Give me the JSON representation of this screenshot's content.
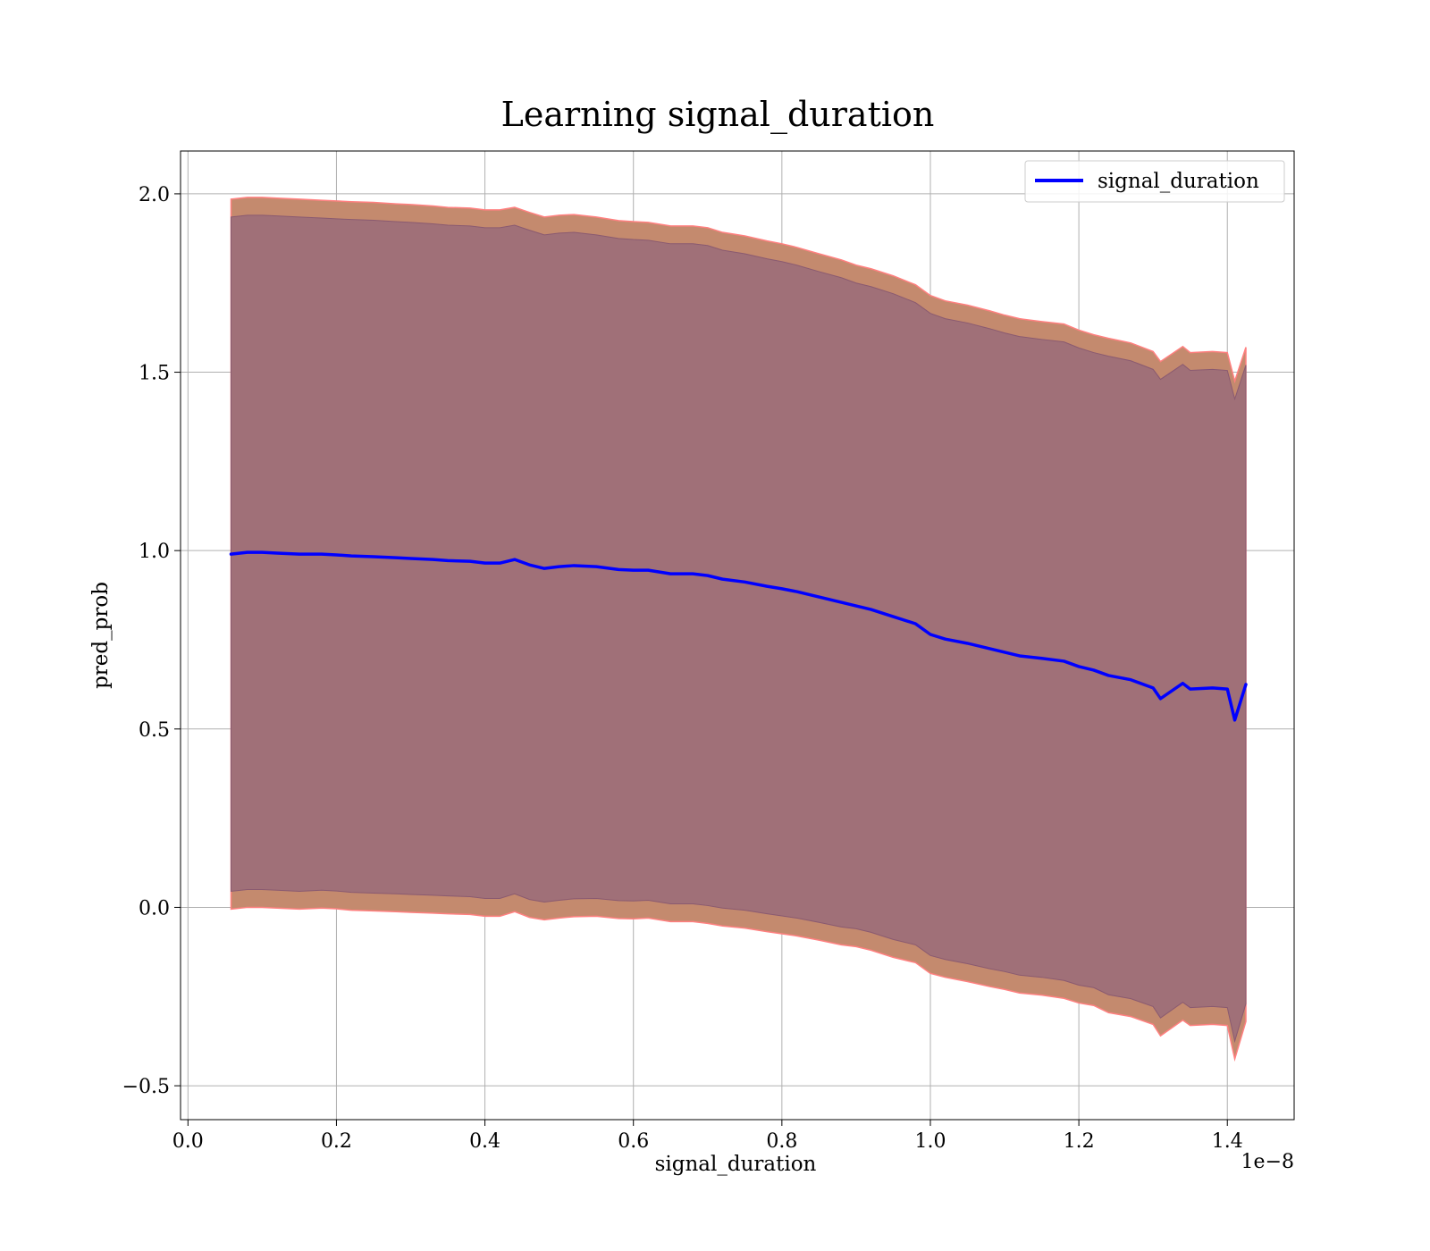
{
  "chart_data": {
    "type": "line",
    "title": "Learning signal_duration",
    "xlabel": "signal_duration",
    "ylabel": "pred_prob",
    "x_offset_text": "1e−8",
    "xlim": [
      -0.01,
      1.49
    ],
    "ylim": [
      -0.595,
      2.12
    ],
    "x_ticks": [
      0.0,
      0.2,
      0.4,
      0.6,
      0.8,
      1.0,
      1.2,
      1.4
    ],
    "x_tick_labels": [
      "0.0",
      "0.2",
      "0.4",
      "0.6",
      "0.8",
      "1.0",
      "1.2",
      "1.4"
    ],
    "y_ticks": [
      -0.5,
      0.0,
      0.5,
      1.0,
      1.5,
      2.0
    ],
    "y_tick_labels": [
      "−0.5",
      "0.0",
      "0.5",
      "1.0",
      "1.5",
      "2.0"
    ],
    "grid": true,
    "legend": {
      "position": "top-right",
      "entries": [
        "signal_duration"
      ]
    },
    "series": [
      {
        "name": "signal_duration",
        "color": "#0000ff",
        "x": [
          0.058,
          0.08,
          0.1,
          0.12,
          0.15,
          0.18,
          0.2,
          0.22,
          0.25,
          0.28,
          0.3,
          0.33,
          0.35,
          0.38,
          0.4,
          0.42,
          0.44,
          0.46,
          0.48,
          0.5,
          0.52,
          0.55,
          0.58,
          0.6,
          0.62,
          0.65,
          0.68,
          0.7,
          0.72,
          0.75,
          0.78,
          0.8,
          0.82,
          0.85,
          0.88,
          0.9,
          0.92,
          0.95,
          0.98,
          1.0,
          1.02,
          1.05,
          1.08,
          1.1,
          1.12,
          1.15,
          1.18,
          1.2,
          1.22,
          1.24,
          1.27,
          1.3,
          1.31,
          1.34,
          1.35,
          1.38,
          1.4,
          1.41,
          1.425
        ],
        "y": [
          0.99,
          0.995,
          0.995,
          0.993,
          0.99,
          0.99,
          0.988,
          0.985,
          0.983,
          0.98,
          0.978,
          0.975,
          0.972,
          0.97,
          0.965,
          0.965,
          0.975,
          0.96,
          0.95,
          0.955,
          0.958,
          0.955,
          0.947,
          0.945,
          0.945,
          0.935,
          0.935,
          0.93,
          0.92,
          0.912,
          0.9,
          0.893,
          0.885,
          0.87,
          0.855,
          0.845,
          0.835,
          0.815,
          0.795,
          0.765,
          0.752,
          0.74,
          0.725,
          0.715,
          0.705,
          0.698,
          0.69,
          0.675,
          0.665,
          0.65,
          0.638,
          0.615,
          0.585,
          0.628,
          0.612,
          0.615,
          0.612,
          0.525,
          0.625
        ],
        "band_outer": {
          "color": "#c48a6e",
          "edge_color": "#ff8080",
          "upper": [
            1.985,
            1.99,
            1.99,
            1.988,
            1.985,
            1.982,
            1.98,
            1.978,
            1.976,
            1.972,
            1.97,
            1.966,
            1.962,
            1.96,
            1.955,
            1.955,
            1.962,
            1.948,
            1.935,
            1.94,
            1.942,
            1.935,
            1.925,
            1.922,
            1.92,
            1.91,
            1.91,
            1.905,
            1.892,
            1.882,
            1.868,
            1.86,
            1.85,
            1.832,
            1.815,
            1.8,
            1.79,
            1.77,
            1.745,
            1.715,
            1.7,
            1.688,
            1.672,
            1.66,
            1.65,
            1.642,
            1.635,
            1.618,
            1.605,
            1.595,
            1.582,
            1.558,
            1.53,
            1.572,
            1.555,
            1.558,
            1.555,
            1.475,
            1.57
          ],
          "lower": [
            -0.005,
            0.0,
            0.0,
            -0.002,
            -0.005,
            -0.002,
            -0.004,
            -0.008,
            -0.01,
            -0.012,
            -0.014,
            -0.016,
            -0.018,
            -0.02,
            -0.025,
            -0.025,
            -0.012,
            -0.028,
            -0.035,
            -0.03,
            -0.026,
            -0.025,
            -0.031,
            -0.032,
            -0.03,
            -0.04,
            -0.04,
            -0.045,
            -0.052,
            -0.058,
            -0.068,
            -0.074,
            -0.08,
            -0.092,
            -0.105,
            -0.11,
            -0.12,
            -0.14,
            -0.155,
            -0.185,
            -0.196,
            -0.208,
            -0.222,
            -0.23,
            -0.24,
            -0.246,
            -0.255,
            -0.268,
            -0.275,
            -0.295,
            -0.306,
            -0.328,
            -0.36,
            -0.316,
            -0.331,
            -0.328,
            -0.331,
            -0.425,
            -0.32
          ]
        },
        "band_inner": {
          "color": "#a07078",
          "upper": [
            1.935,
            1.94,
            1.94,
            1.938,
            1.935,
            1.932,
            1.93,
            1.928,
            1.926,
            1.922,
            1.92,
            1.916,
            1.912,
            1.91,
            1.905,
            1.905,
            1.912,
            1.898,
            1.885,
            1.89,
            1.892,
            1.885,
            1.875,
            1.872,
            1.87,
            1.86,
            1.86,
            1.855,
            1.842,
            1.832,
            1.818,
            1.81,
            1.8,
            1.782,
            1.765,
            1.75,
            1.74,
            1.72,
            1.695,
            1.665,
            1.65,
            1.638,
            1.622,
            1.61,
            1.6,
            1.592,
            1.585,
            1.568,
            1.555,
            1.545,
            1.532,
            1.508,
            1.48,
            1.522,
            1.505,
            1.508,
            1.505,
            1.425,
            1.52
          ],
          "lower": [
            0.045,
            0.05,
            0.05,
            0.048,
            0.045,
            0.048,
            0.046,
            0.042,
            0.04,
            0.038,
            0.036,
            0.034,
            0.032,
            0.03,
            0.025,
            0.025,
            0.038,
            0.022,
            0.015,
            0.02,
            0.024,
            0.025,
            0.019,
            0.018,
            0.02,
            0.01,
            0.01,
            0.005,
            -0.002,
            -0.008,
            -0.018,
            -0.024,
            -0.03,
            -0.042,
            -0.055,
            -0.06,
            -0.07,
            -0.09,
            -0.105,
            -0.135,
            -0.146,
            -0.158,
            -0.172,
            -0.18,
            -0.19,
            -0.196,
            -0.205,
            -0.218,
            -0.225,
            -0.245,
            -0.256,
            -0.278,
            -0.31,
            -0.266,
            -0.281,
            -0.278,
            -0.281,
            -0.375,
            -0.27
          ]
        }
      }
    ]
  }
}
